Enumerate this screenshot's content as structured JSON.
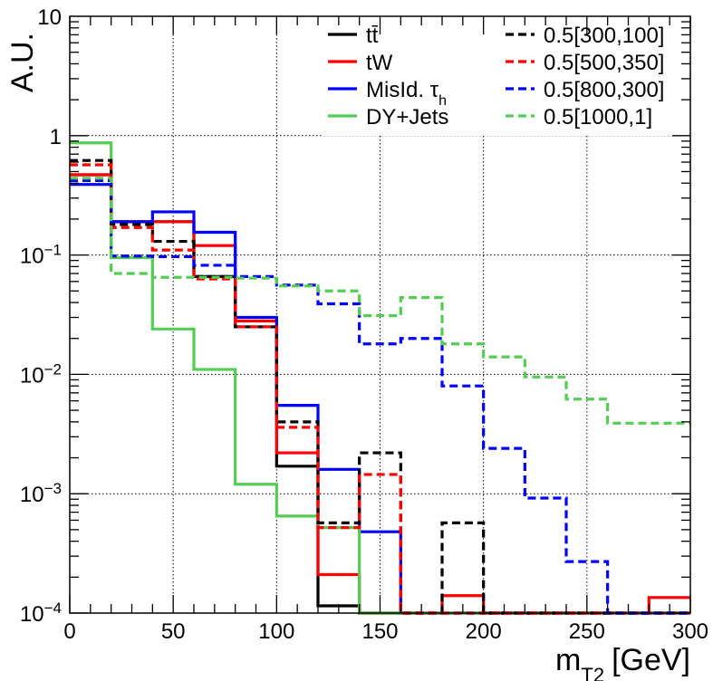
{
  "chart_data": {
    "type": "line",
    "style": "step-histogram",
    "xlabel": "m",
    "xlabel_sub": "T2",
    "xlabel_unit": "[GeV]",
    "ylabel": "A.U.",
    "xlim": [
      0,
      300
    ],
    "ylim": [
      0.0001,
      10
    ],
    "yscale": "log",
    "grid": true,
    "x_ticks": [
      0,
      50,
      100,
      150,
      200,
      250,
      300
    ],
    "x_tick_labels": [
      "0",
      "50",
      "100",
      "150",
      "200",
      "250",
      "300"
    ],
    "y_ticks": [
      {
        "value": 10,
        "base": "10",
        "exp": ""
      },
      {
        "value": 1,
        "base": "1",
        "exp": ""
      },
      {
        "value": 0.1,
        "base": "10",
        "exp": "−1"
      },
      {
        "value": 0.01,
        "base": "10",
        "exp": "−2"
      },
      {
        "value": 0.001,
        "base": "10",
        "exp": "−3"
      },
      {
        "value": 0.0001,
        "base": "10",
        "exp": "−4"
      }
    ],
    "bin_edges": [
      0,
      20,
      40,
      60,
      80,
      100,
      120,
      140,
      160,
      180,
      200,
      220,
      240,
      260,
      280,
      300
    ],
    "legend_placement": "top-right",
    "series": [
      {
        "name": "tt̄",
        "color": "#000000",
        "dash": false,
        "values": [
          0.47,
          0.19,
          0.19,
          0.066,
          0.025,
          0.0017,
          0.000115,
          0.0001,
          0.0001,
          0.0001,
          0.0001,
          0.0001,
          0.0001,
          0.0001,
          0.0001
        ]
      },
      {
        "name": "tW",
        "color": "#ff0000",
        "dash": false,
        "values": [
          0.47,
          0.19,
          0.19,
          0.12,
          0.028,
          0.0022,
          0.00021,
          0.0001,
          0.0001,
          0.00014,
          0.0001,
          0.0001,
          0.0001,
          0.0001,
          0.000135
        ]
      },
      {
        "name": "MisId. τ",
        "name_sub": "h",
        "color": "#0000ff",
        "dash": false,
        "values": [
          0.39,
          0.19,
          0.23,
          0.155,
          0.03,
          0.0055,
          0.0016,
          0.00048,
          0.0001,
          0.0001,
          0.0001,
          0.0001,
          0.0001,
          0.0001,
          0.0001
        ]
      },
      {
        "name": "DY+Jets",
        "color": "#55cc55",
        "dash": false,
        "values": [
          0.87,
          0.095,
          0.024,
          0.011,
          0.0012,
          0.00065,
          0.00052,
          0.0001,
          0.0001,
          0.0001,
          0.0001,
          0.0001,
          0.0001,
          0.0001,
          0.0001
        ]
      },
      {
        "name": "0.5[300,100]",
        "color": "#000000",
        "dash": true,
        "values": [
          0.62,
          0.18,
          0.13,
          0.066,
          0.025,
          0.004,
          0.00057,
          0.0022,
          0.0001,
          0.00057,
          0.0001,
          0.0001,
          0.0001,
          0.0001,
          0.0001
        ]
      },
      {
        "name": "0.5[500,350]",
        "color": "#ff0000",
        "dash": true,
        "values": [
          0.57,
          0.17,
          0.11,
          0.063,
          0.025,
          0.0036,
          0.00052,
          0.00145,
          0.0001,
          0.0001,
          0.0001,
          0.0001,
          0.0001,
          0.0001,
          0.0001
        ]
      },
      {
        "name": "0.5[800,300]",
        "color": "#0000ff",
        "dash": true,
        "values": [
          0.42,
          0.098,
          0.097,
          0.082,
          0.066,
          0.056,
          0.039,
          0.018,
          0.02,
          0.008,
          0.0024,
          0.00092,
          0.00027,
          0.0001,
          0.0001
        ]
      },
      {
        "name": "0.5[1000,1]",
        "color": "#55cc55",
        "dash": true,
        "values": [
          0.44,
          0.07,
          0.065,
          0.065,
          0.064,
          0.055,
          0.05,
          0.031,
          0.044,
          0.018,
          0.014,
          0.0095,
          0.0062,
          0.0039,
          0.0039
        ]
      }
    ]
  }
}
